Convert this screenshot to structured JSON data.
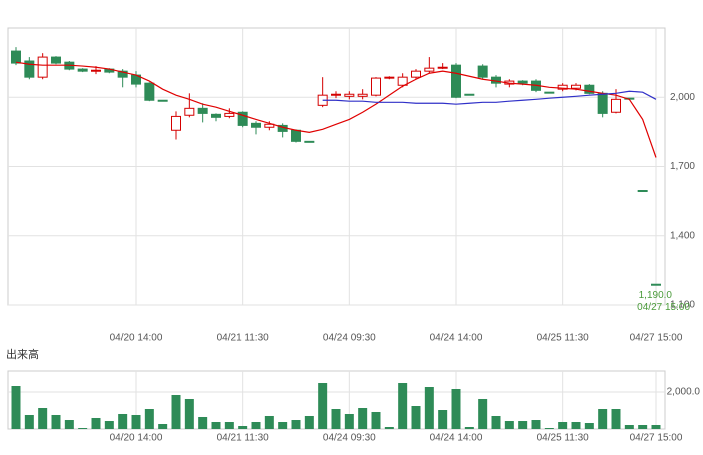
{
  "chart_data": [
    {
      "type": "candlestick",
      "categories": [
        null,
        null,
        null,
        null,
        null,
        null,
        null,
        null,
        null,
        "04/20 14:00",
        null,
        null,
        null,
        null,
        null,
        null,
        null,
        "04/21 11:30",
        null,
        null,
        null,
        null,
        null,
        null,
        null,
        "04/24 09:30",
        null,
        null,
        null,
        null,
        null,
        null,
        null,
        "04/24 14:00",
        null,
        null,
        null,
        null,
        null,
        null,
        null,
        "04/25 11:30",
        null,
        null,
        null,
        null,
        null,
        null,
        "04/27 15:00"
      ],
      "open": [
        2200,
        2157,
        2087,
        2174,
        2152,
        2122,
        2113,
        2122,
        2113,
        2096,
        2061,
        1987,
        1857,
        1922,
        1952,
        1926,
        1917,
        1935,
        1887,
        1870,
        1878,
        1857,
        1809,
        1965,
        2009,
        2004,
        2004,
        2009,
        2083,
        2052,
        2087,
        2113,
        2126,
        2139,
        2013,
        2135,
        2087,
        2057,
        2070,
        2070,
        2022,
        2035,
        2039,
        2052,
        2017,
        1935,
        1996,
        1596,
        1190
      ],
      "high": [
        2217,
        2174,
        2191,
        2178,
        2157,
        2126,
        2135,
        2126,
        2122,
        2113,
        2065,
        1987,
        1939,
        2017,
        1974,
        1930,
        1952,
        1939,
        1896,
        1896,
        1887,
        1861,
        1809,
        2087,
        2026,
        2026,
        2035,
        2087,
        2091,
        2104,
        2122,
        2174,
        2148,
        2148,
        2013,
        2143,
        2096,
        2078,
        2074,
        2078,
        2022,
        2061,
        2061,
        2057,
        2026,
        2035,
        1996,
        1596,
        1190
      ],
      "low": [
        2139,
        2078,
        2078,
        2143,
        2117,
        2109,
        2100,
        2104,
        2043,
        2043,
        1983,
        1983,
        1817,
        1913,
        1891,
        1896,
        1909,
        1870,
        1839,
        1857,
        1826,
        1804,
        1809,
        1957,
        1996,
        1991,
        1991,
        2004,
        2078,
        2043,
        2078,
        2104,
        2122,
        1996,
        2013,
        2078,
        2043,
        2043,
        2052,
        2022,
        2022,
        2026,
        2030,
        2013,
        1913,
        1930,
        1996,
        1596,
        1190
      ],
      "close": [
        2148,
        2087,
        2174,
        2148,
        2122,
        2113,
        2117,
        2109,
        2087,
        2057,
        1987,
        1983,
        1917,
        1952,
        1930,
        1913,
        1930,
        1878,
        1870,
        1883,
        1852,
        1809,
        1809,
        2009,
        2013,
        2013,
        2013,
        2083,
        2087,
        2087,
        2113,
        2126,
        2130,
        2000,
        2013,
        2087,
        2061,
        2070,
        2061,
        2030,
        2022,
        2052,
        2052,
        2017,
        1930,
        1991,
        1996,
        1596,
        1190
      ],
      "up_color": "#d40000",
      "down_color": "#2e8b57",
      "lines": [
        {
          "color": "#e00000",
          "values": [
            2152,
            2143,
            2139,
            2139,
            2139,
            2135,
            2130,
            2122,
            2109,
            2096,
            2070,
            2035,
            2009,
            1991,
            1970,
            1957,
            1939,
            1922,
            1904,
            1887,
            1870,
            1857,
            1848,
            1861,
            1883,
            1904,
            1935,
            1970,
            2009,
            2048,
            2078,
            2104,
            2113,
            2104,
            2091,
            2078,
            2070,
            2061,
            2057,
            2052,
            2043,
            2039,
            2035,
            2026,
            2017,
            2009,
            1991,
            1904,
            1739
          ]
        },
        {
          "color": "#3030c8",
          "values": [
            null,
            null,
            null,
            null,
            null,
            null,
            null,
            null,
            null,
            null,
            null,
            null,
            null,
            null,
            null,
            null,
            null,
            null,
            null,
            null,
            null,
            null,
            null,
            1987,
            1987,
            1983,
            1983,
            1978,
            1978,
            1978,
            1974,
            1974,
            1974,
            1970,
            1974,
            1978,
            1978,
            1983,
            1987,
            1991,
            1996,
            2000,
            2004,
            2009,
            2013,
            2017,
            2026,
            2022,
            1991
          ]
        }
      ],
      "ylim": [
        1100,
        2300
      ],
      "yticks": [
        {
          "value": 1100,
          "label": "1,100"
        },
        {
          "value": 1400,
          "label": "1,400"
        },
        {
          "value": 1700,
          "label": "1,700"
        },
        {
          "value": 2000,
          "label": "2,000"
        }
      ],
      "grid": true,
      "last_price": {
        "value": 1190,
        "label": "1,190.0"
      },
      "last_time": "04/27 15:00",
      "annotation_color": "#4a9a3a"
    },
    {
      "type": "bar",
      "title": "出来高",
      "categories": [
        null,
        null,
        null,
        null,
        null,
        null,
        null,
        null,
        null,
        "04/20 14:00",
        null,
        null,
        null,
        null,
        null,
        null,
        null,
        "04/21 11:30",
        null,
        null,
        null,
        null,
        null,
        null,
        null,
        "04/24 09:30",
        null,
        null,
        null,
        null,
        null,
        null,
        null,
        "04/24 14:00",
        null,
        null,
        null,
        null,
        null,
        null,
        null,
        "04/25 11:30",
        null,
        null,
        null,
        null,
        null,
        null,
        "04/27 15:00"
      ],
      "values": [
        2324,
        757,
        1135,
        757,
        486,
        54,
        595,
        432,
        811,
        757,
        1081,
        270,
        1838,
        1622,
        649,
        378,
        378,
        162,
        378,
        703,
        378,
        486,
        703,
        2486,
        1081,
        811,
        1135,
        919,
        108,
        2486,
        1243,
        2270,
        1027,
        2162,
        108,
        1622,
        703,
        432,
        432,
        486,
        54,
        378,
        378,
        324,
        1081,
        1081,
        216,
        216,
        216
      ],
      "color": "#2e8b57",
      "ylim": [
        0,
        3135
      ],
      "yticks": [
        {
          "value": 2000,
          "label": "2,000.0"
        }
      ],
      "grid": true
    }
  ]
}
